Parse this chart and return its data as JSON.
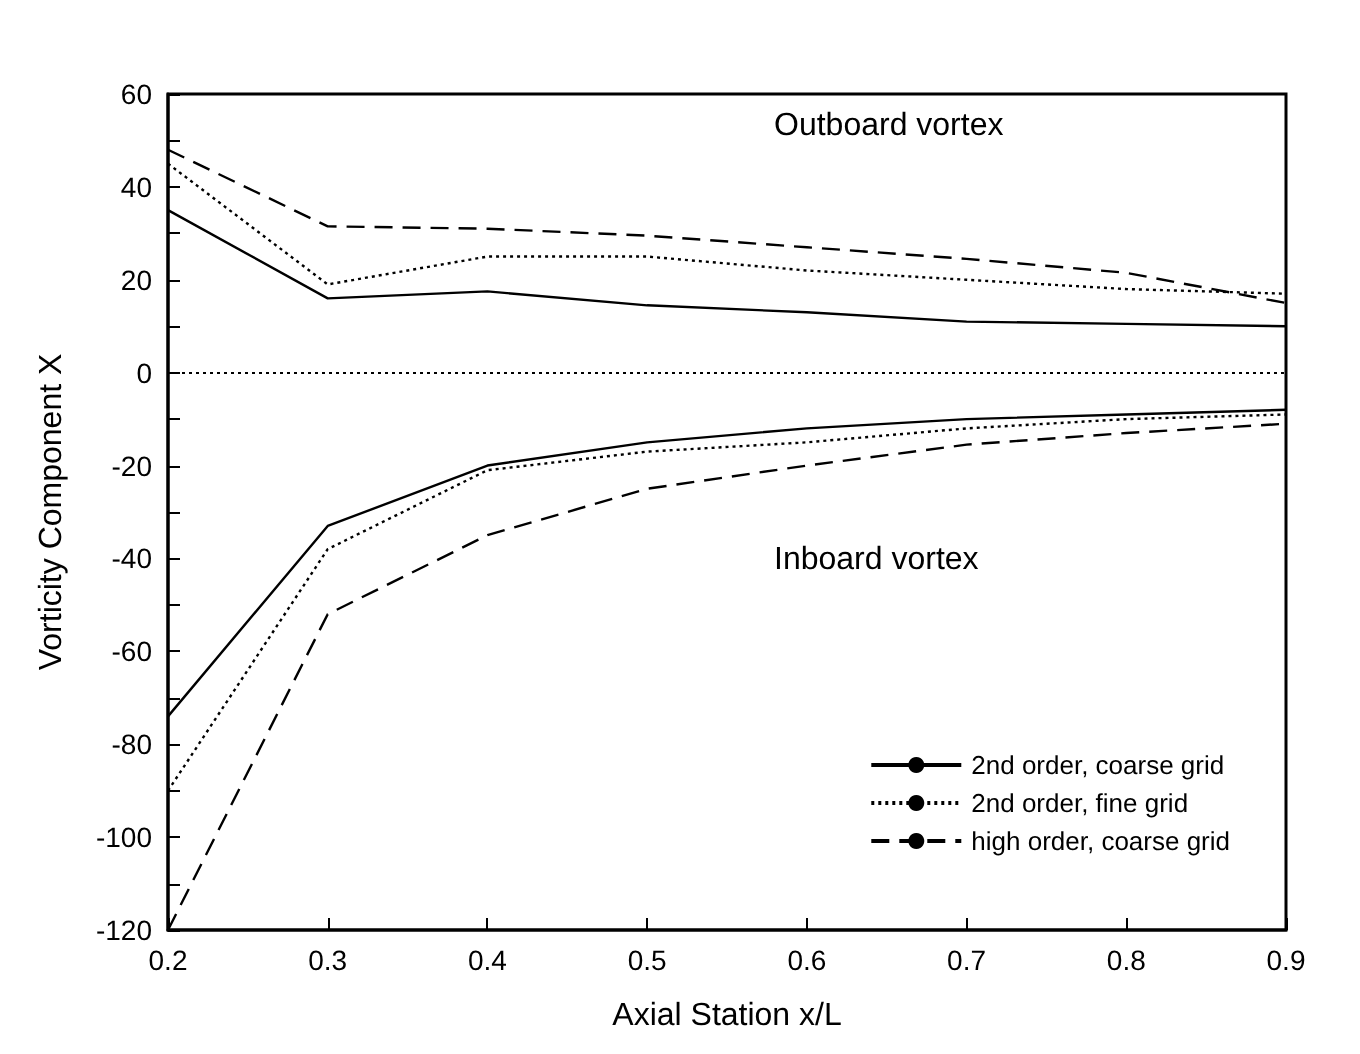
{
  "chart_data": {
    "type": "line",
    "xlabel": "Axial Station x/L",
    "ylabel": "Vorticity Component X",
    "x": [
      0.2,
      0.3,
      0.4,
      0.5,
      0.6,
      0.7,
      0.8,
      0.9
    ],
    "series": [
      {
        "name": "2nd order, coarse grid",
        "color": "#000000",
        "line_style": "solid",
        "values": [
          35,
          16,
          17.5,
          14.5,
          13,
          11,
          10.5,
          10
        ]
      },
      {
        "name": "2nd order, fine grid",
        "color": "#000000",
        "line_style": "dotted",
        "values": [
          45,
          19,
          25,
          25,
          22,
          20,
          18,
          17
        ]
      },
      {
        "name": "high order, coarse grid",
        "color": "#000000",
        "line_style": "dashed",
        "values": [
          48,
          31.5,
          31,
          29.5,
          27,
          24.5,
          21.5,
          15
        ]
      },
      {
        "color": "#000000",
        "line_style": "solid",
        "values": [
          -74,
          -33,
          -20,
          -15,
          -12,
          -10,
          -9,
          -8
        ]
      },
      {
        "color": "#000000",
        "line_style": "dotted",
        "values": [
          -90,
          -38,
          -21,
          -17,
          -15,
          -12,
          -10,
          -9
        ]
      },
      {
        "color": "#000000",
        "line_style": "dashed",
        "values": [
          -120,
          -52,
          -35,
          -25,
          -20,
          -15.5,
          -13,
          -11
        ]
      }
    ],
    "xlim": [
      0.2,
      0.9
    ],
    "xticks": [
      0.2,
      0.3,
      0.4,
      0.5,
      0.6,
      0.7,
      0.8,
      0.9
    ],
    "ylim": [
      -120,
      60
    ],
    "yticks": [
      -120,
      {
        "value": -110,
        "label": null
      },
      -100,
      {
        "value": -90,
        "label": null
      },
      -80,
      {
        "value": -70,
        "label": null
      },
      -60,
      {
        "value": -50,
        "label": null
      },
      -40,
      {
        "value": -30,
        "label": null
      },
      -20,
      {
        "value": -10,
        "label": null
      },
      0,
      {
        "value": 10,
        "label": null
      },
      20,
      {
        "value": 30,
        "label": null
      },
      40,
      {
        "value": 50,
        "label": null
      },
      60
    ],
    "ref_lines": [
      {
        "axis": "y",
        "value": 0,
        "color": "#000000",
        "line_style": "dotted"
      }
    ],
    "annotations": [
      "Outboard vortex",
      "Inboard vortex"
    ],
    "grid": false,
    "legend": "bottom right",
    "marker": "none"
  }
}
